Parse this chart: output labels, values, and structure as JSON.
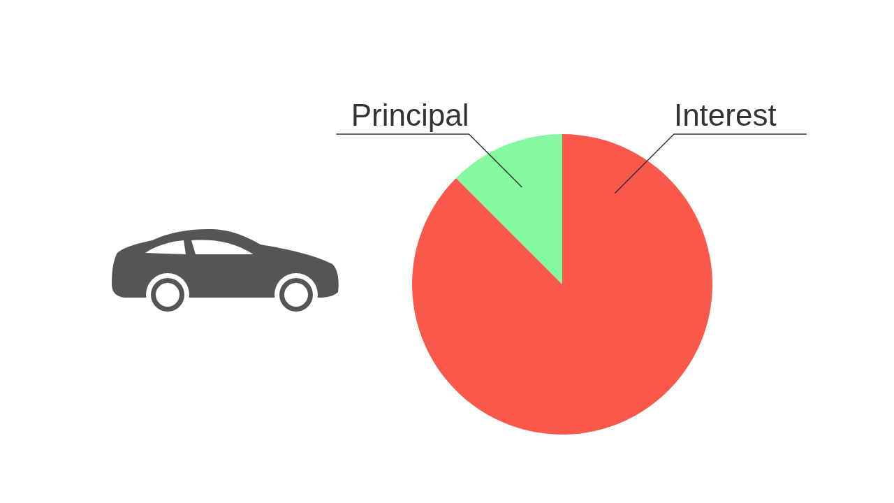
{
  "chart_data": {
    "type": "pie",
    "categories": [
      "Principal",
      "Interest"
    ],
    "values": [
      12.5,
      87.5
    ],
    "colors": [
      "#85f9a0",
      "#f9584b"
    ]
  }
}
